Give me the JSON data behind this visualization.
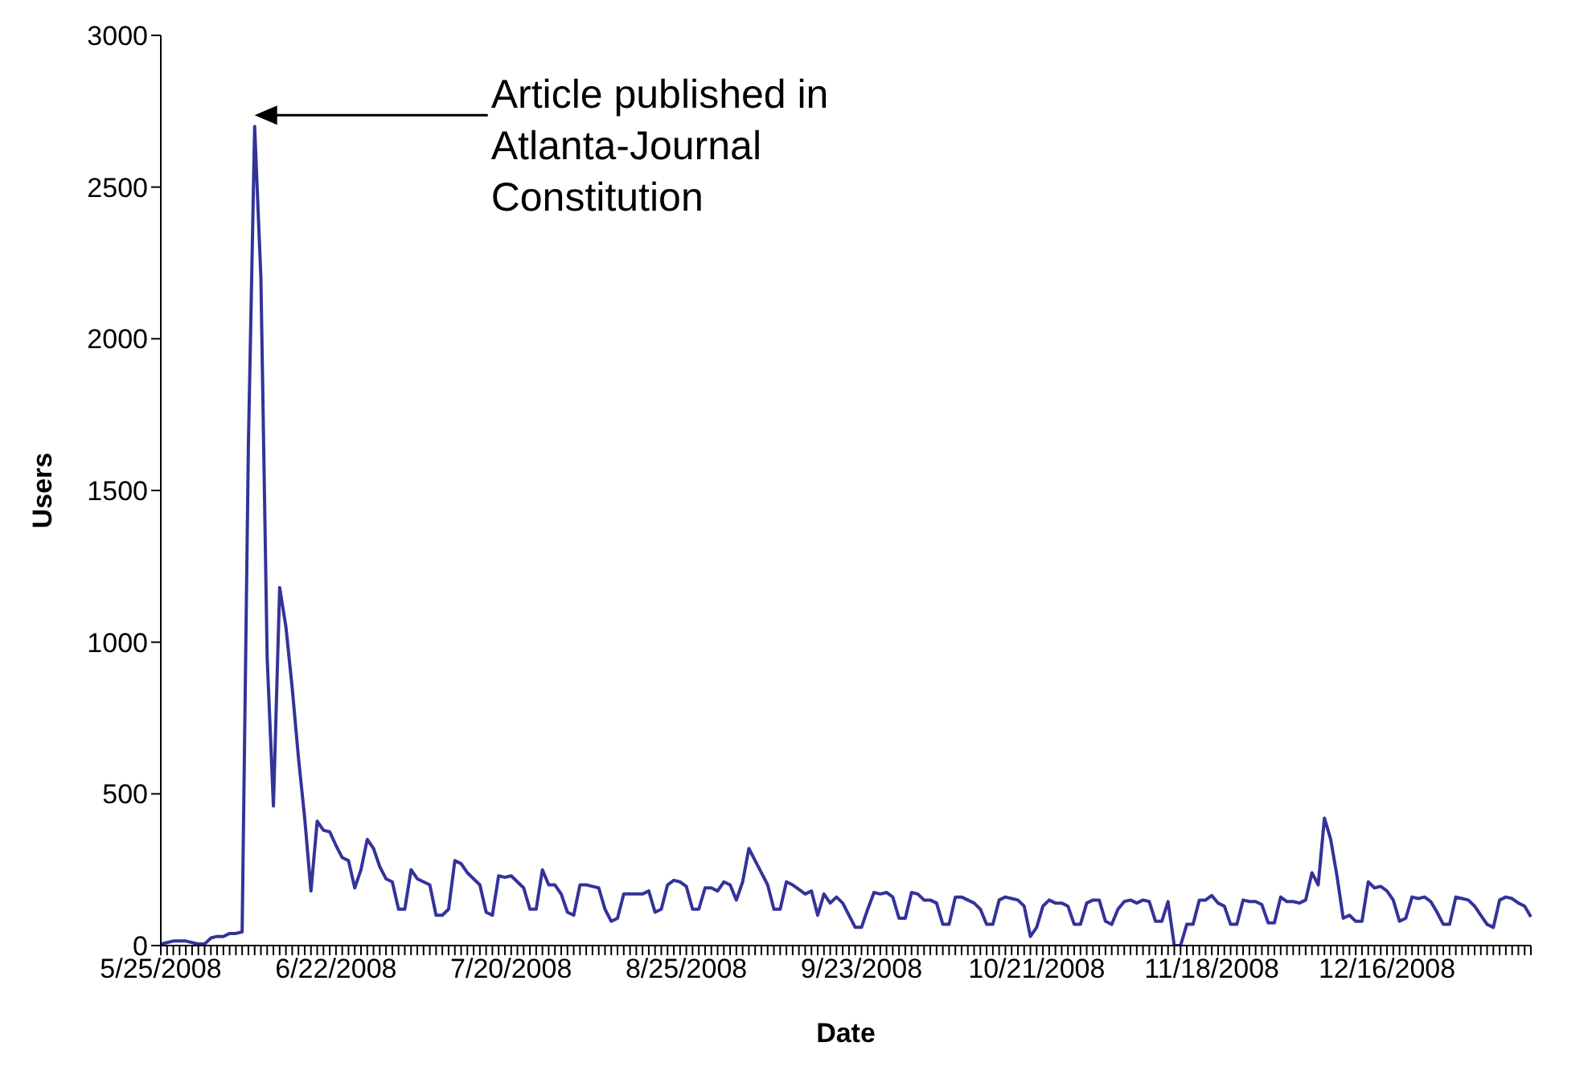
{
  "chart_data": {
    "type": "line",
    "xlabel": "Date",
    "ylabel": "Users",
    "color": "#333399",
    "ylim": [
      0,
      3000
    ],
    "yticks": [
      0,
      500,
      1000,
      1500,
      2000,
      2500,
      3000
    ],
    "annotations": [
      "Article published in Atlanta-Journal Constitution"
    ],
    "categories": [
      "5/25/2008",
      null,
      null,
      null,
      null,
      null,
      null,
      null,
      null,
      null,
      null,
      null,
      null,
      null,
      null,
      null,
      null,
      null,
      null,
      null,
      null,
      null,
      null,
      null,
      null,
      null,
      null,
      null,
      "6/22/2008",
      null,
      null,
      null,
      null,
      null,
      null,
      null,
      null,
      null,
      null,
      null,
      null,
      null,
      null,
      null,
      null,
      null,
      null,
      null,
      null,
      null,
      null,
      null,
      null,
      null,
      null,
      null,
      "7/20/2008",
      null,
      null,
      null,
      null,
      null,
      null,
      null,
      null,
      null,
      null,
      null,
      null,
      null,
      null,
      null,
      null,
      null,
      null,
      null,
      null,
      null,
      null,
      null,
      null,
      null,
      null,
      null,
      "8/25/2008",
      null,
      null,
      null,
      null,
      null,
      null,
      null,
      null,
      null,
      null,
      null,
      null,
      null,
      null,
      null,
      null,
      null,
      null,
      null,
      null,
      null,
      null,
      null,
      null,
      null,
      null,
      null,
      "9/23/2008",
      null,
      null,
      null,
      null,
      null,
      null,
      null,
      null,
      null,
      null,
      null,
      null,
      null,
      null,
      null,
      null,
      null,
      null,
      null,
      null,
      null,
      null,
      null,
      null,
      null,
      null,
      null,
      "10/21/2008",
      null,
      null,
      null,
      null,
      null,
      null,
      null,
      null,
      null,
      null,
      null,
      null,
      null,
      null,
      null,
      null,
      null,
      null,
      null,
      null,
      null,
      null,
      null,
      null,
      null,
      null,
      null,
      "11/18/2008",
      null,
      null,
      null,
      null,
      null,
      null,
      null,
      null,
      null,
      null,
      null,
      null,
      null,
      null,
      null,
      null,
      null,
      null,
      null,
      null,
      null,
      null,
      null,
      null,
      null,
      null,
      null,
      "12/16/2008",
      null,
      null,
      null,
      null,
      null,
      null,
      null,
      null,
      null,
      null,
      null,
      null,
      null,
      null,
      null,
      null,
      null,
      null,
      null,
      null,
      null,
      null,
      null
    ],
    "values": [
      5,
      10,
      15,
      15,
      15,
      10,
      5,
      5,
      25,
      30,
      30,
      40,
      40,
      45,
      1650,
      2700,
      2200,
      950,
      460,
      1180,
      1050,
      850,
      620,
      420,
      180,
      410,
      380,
      375,
      330,
      290,
      280,
      190,
      250,
      350,
      320,
      260,
      220,
      210,
      120,
      120,
      250,
      220,
      210,
      200,
      100,
      100,
      120,
      280,
      270,
      240,
      220,
      200,
      110,
      100,
      230,
      225,
      230,
      210,
      190,
      120,
      120,
      250,
      200,
      200,
      170,
      110,
      100,
      200,
      200,
      195,
      190,
      120,
      80,
      90,
      170,
      170,
      170,
      170,
      180,
      110,
      120,
      200,
      215,
      210,
      195,
      120,
      120,
      190,
      190,
      180,
      210,
      200,
      150,
      210,
      320,
      280,
      240,
      200,
      120,
      120,
      210,
      200,
      185,
      170,
      180,
      100,
      170,
      140,
      160,
      140,
      100,
      60,
      60,
      120,
      175,
      170,
      175,
      160,
      90,
      90,
      175,
      170,
      150,
      150,
      140,
      70,
      70,
      160,
      160,
      150,
      140,
      120,
      70,
      70,
      150,
      160,
      155,
      150,
      130,
      30,
      60,
      130,
      150,
      140,
      140,
      130,
      70,
      70,
      140,
      150,
      150,
      80,
      70,
      120,
      145,
      150,
      140,
      150,
      145,
      80,
      80,
      145,
      0,
      0,
      70,
      70,
      150,
      150,
      165,
      140,
      130,
      70,
      70,
      150,
      145,
      145,
      135,
      75,
      75,
      160,
      145,
      145,
      140,
      150,
      240,
      200,
      420,
      350,
      230,
      90,
      100,
      80,
      80,
      210,
      190,
      195,
      180,
      150,
      80,
      90,
      160,
      155,
      160,
      145,
      110,
      70,
      70,
      160,
      155,
      150,
      130,
      100,
      70,
      60,
      150,
      160,
      155,
      140,
      130,
      95
    ]
  }
}
